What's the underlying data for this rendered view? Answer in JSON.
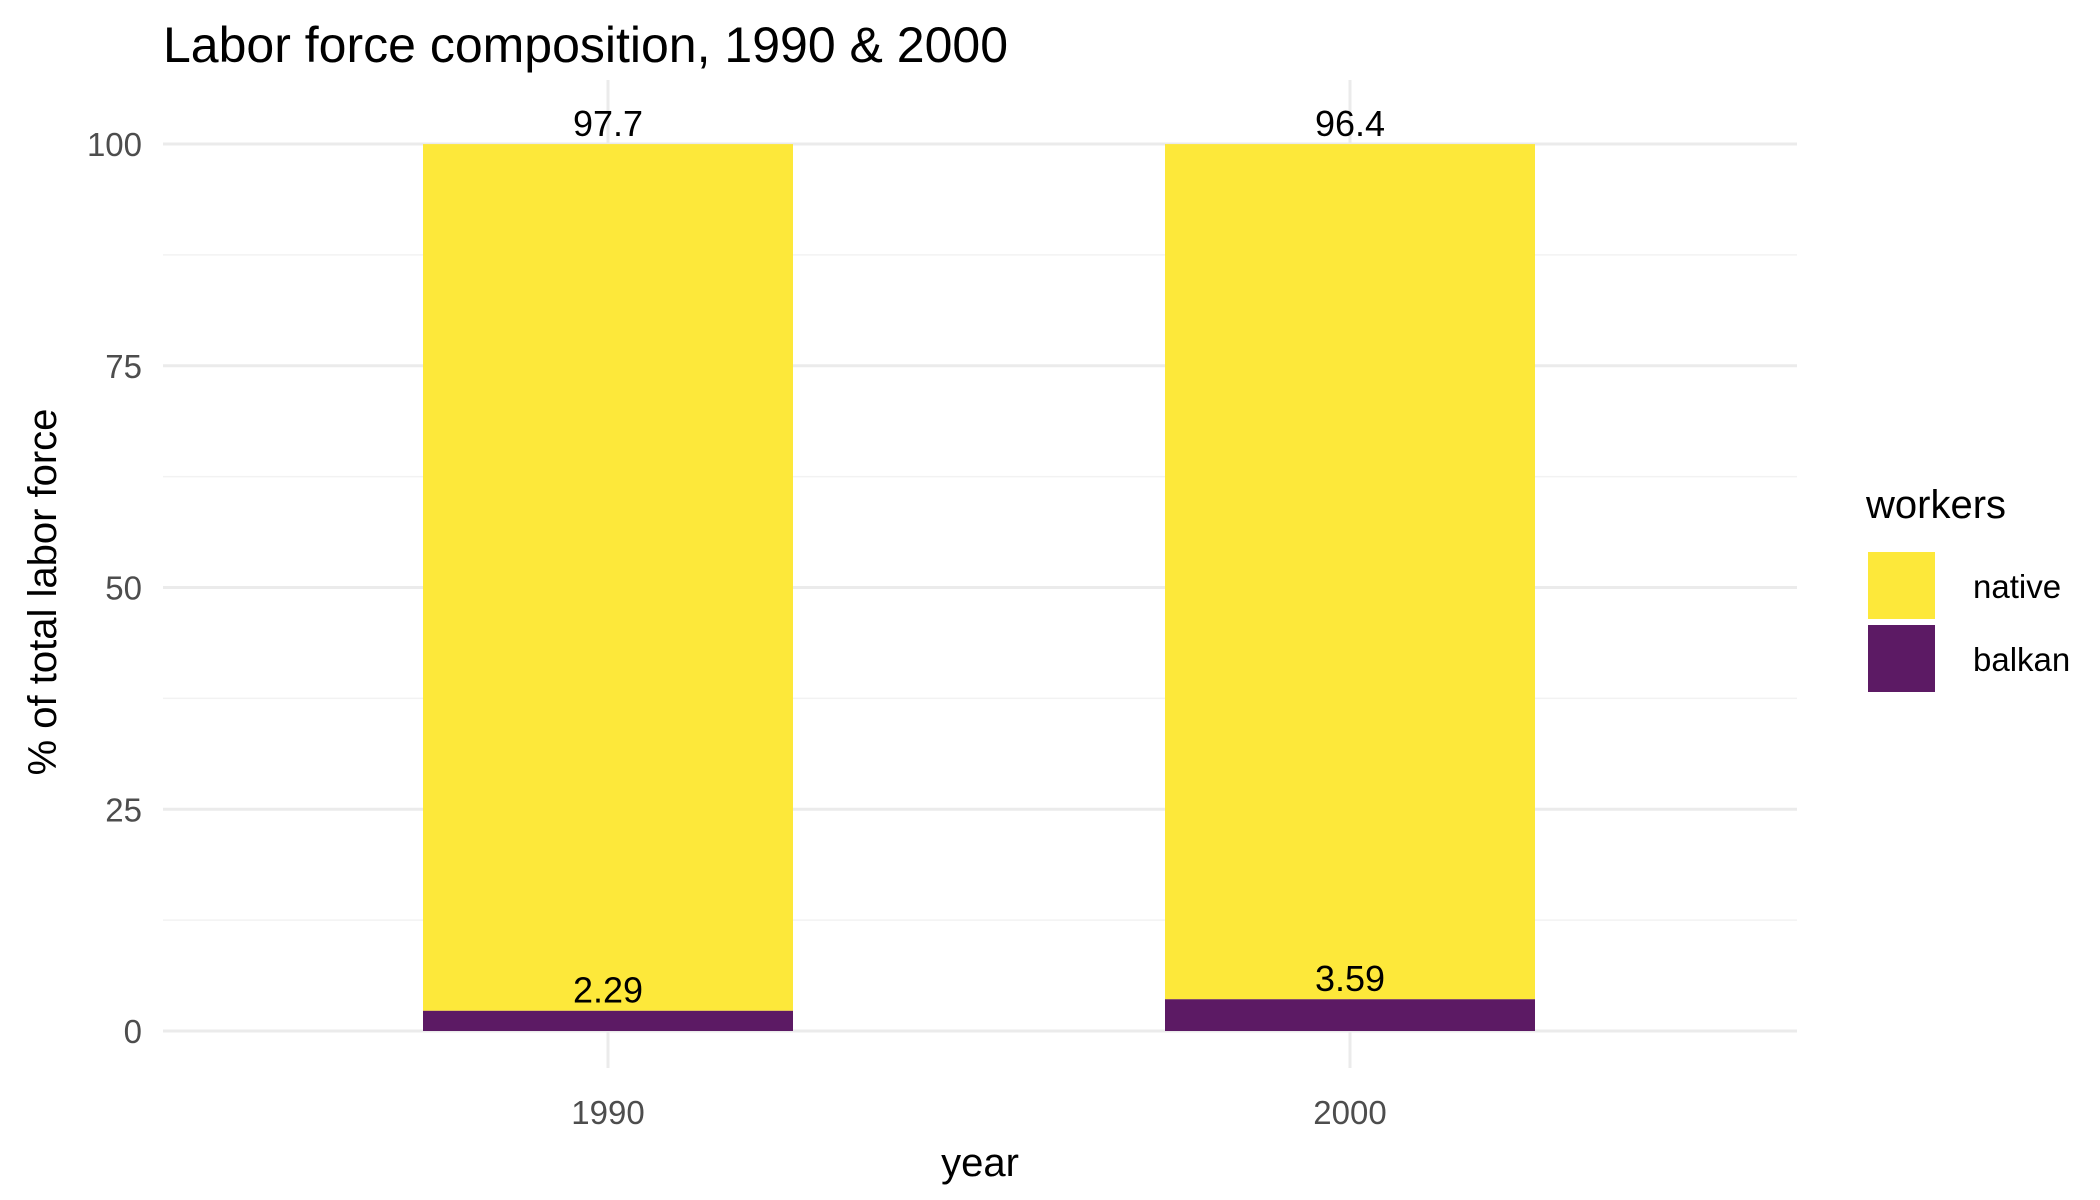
{
  "chart_data": {
    "type": "bar",
    "stacked": true,
    "title": "Labor force composition, 1990 & 2000",
    "xlabel": "year",
    "ylabel": "% of total labor force",
    "categories": [
      "1990",
      "2000"
    ],
    "series": [
      {
        "name": "balkan",
        "values": [
          2.29,
          3.59
        ],
        "labels": [
          "2.29",
          "3.59"
        ],
        "color": "#5c1a64"
      },
      {
        "name": "native",
        "values": [
          97.7,
          96.4
        ],
        "labels": [
          "97.7",
          "96.4"
        ],
        "color": "#fde83a"
      }
    ],
    "yticks": [
      0,
      25,
      50,
      75,
      100
    ],
    "ytick_labels": [
      "0",
      "25",
      "50",
      "75",
      "100"
    ],
    "ylim": [
      -4,
      105
    ],
    "grid": true,
    "legend": {
      "title": "workers",
      "position": "right",
      "order": [
        "native",
        "balkan"
      ]
    }
  }
}
